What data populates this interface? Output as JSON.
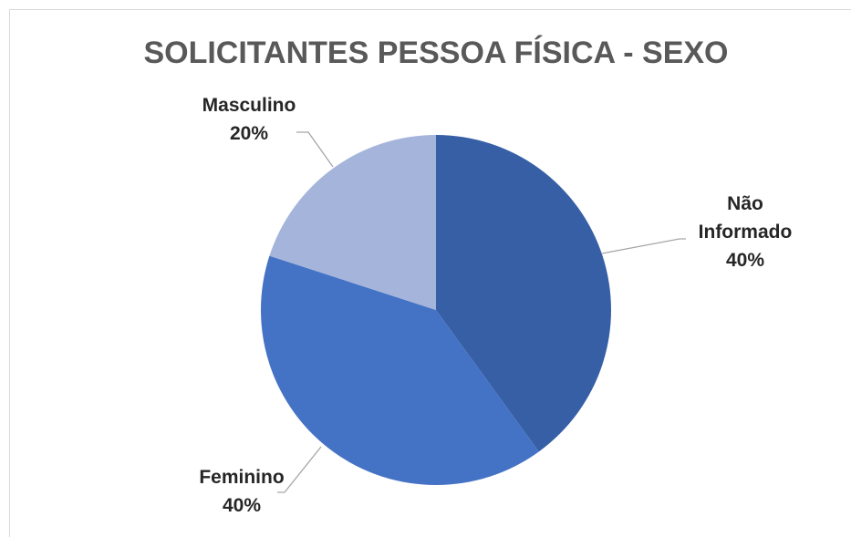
{
  "chart_data": {
    "type": "pie",
    "title": "SOLICITANTES PESSOA FÍSICA - SEXO",
    "categories": [
      "Não Informado",
      "Feminino",
      "Masculino"
    ],
    "values": [
      40,
      40,
      20
    ],
    "value_labels": [
      "40%",
      "40%",
      "20%"
    ],
    "colors": [
      "#365fa6",
      "#4472c4",
      "#a5b4db"
    ]
  }
}
